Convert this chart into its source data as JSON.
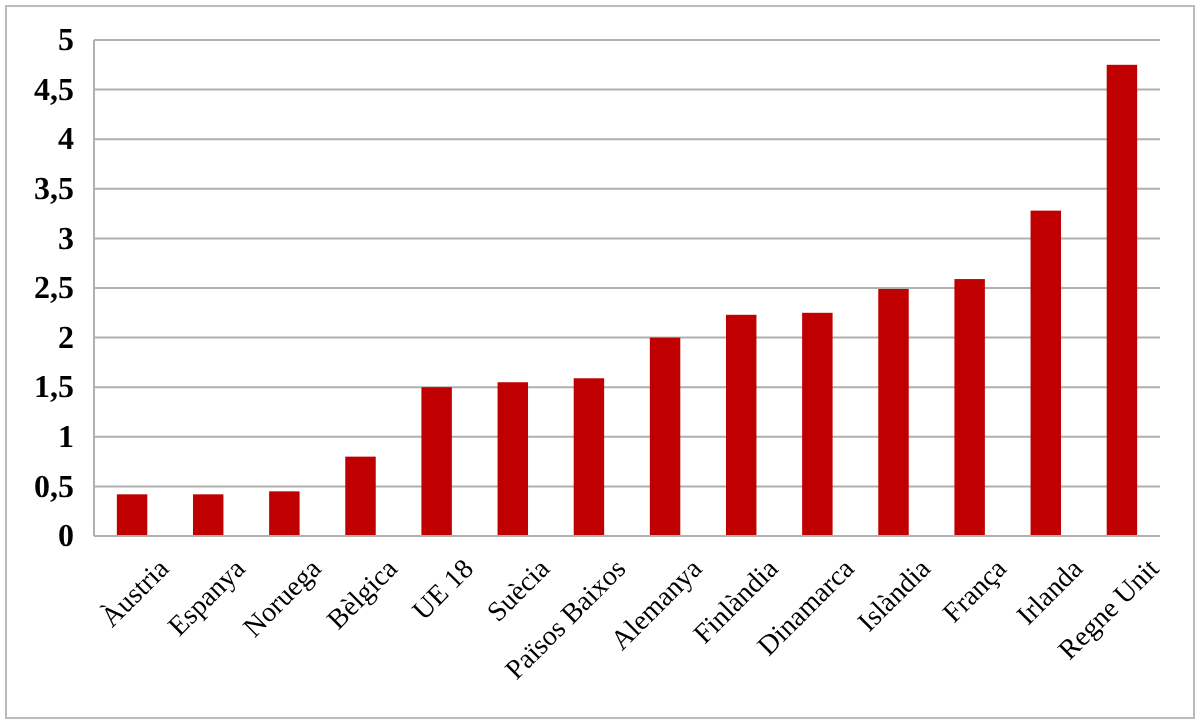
{
  "chart_data": {
    "type": "bar",
    "categories": [
      "Àustria",
      "Espanya",
      "Noruega",
      "Bèlgica",
      "UE 18",
      "Suècia",
      "Països Baixos",
      "Alemanya",
      "Finlàndia",
      "Dinamarca",
      "Islàndia",
      "França",
      "Irlanda",
      "Regne Unit"
    ],
    "values": [
      0.42,
      0.42,
      0.45,
      0.8,
      1.5,
      1.55,
      1.59,
      2.0,
      2.23,
      2.25,
      2.49,
      2.59,
      3.28,
      4.75
    ],
    "color": "#c00000",
    "ylim": [
      0,
      5
    ],
    "yticks": [
      0,
      {
        "value": 0.5,
        "label": "0,5"
      },
      1,
      {
        "value": 1.5,
        "label": "1,5"
      },
      2,
      {
        "value": 2.5,
        "label": "2,5"
      },
      3,
      {
        "value": 3.5,
        "label": "3,5"
      },
      4,
      {
        "value": 4.5,
        "label": "4,5"
      },
      5
    ],
    "grid": "y"
  }
}
